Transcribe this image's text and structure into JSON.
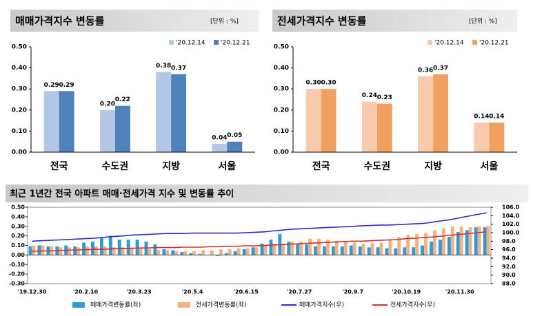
{
  "chart_data": [
    {
      "type": "bar",
      "title": "매매가격지수 변동률",
      "unit": "[단위 : %]",
      "categories": [
        "전국",
        "수도권",
        "지방",
        "서울"
      ],
      "series": [
        {
          "name": "'20.12.14",
          "color": "#b4c7e7",
          "values": [
            0.29,
            0.2,
            0.38,
            0.04
          ],
          "value_labels": [
            "0.29",
            "0.20",
            "0.38",
            "0.04"
          ]
        },
        {
          "name": "'20.12.21",
          "color": "#4f81bd",
          "values": [
            0.29,
            0.22,
            0.37,
            0.05
          ],
          "value_labels": [
            "0.29",
            "0.22",
            "0.37",
            "0.05"
          ]
        }
      ],
      "ylim": [
        0,
        0.5
      ],
      "yticks": [
        {
          "value": 0,
          "label": "0.00"
        },
        {
          "value": 0.1,
          "label": "0.10"
        },
        {
          "value": 0.2,
          "label": "0.20"
        },
        {
          "value": 0.3,
          "label": "0.30"
        },
        {
          "value": 0.4,
          "label": "0.40"
        },
        {
          "value": 0.5,
          "label": "0.50"
        }
      ]
    },
    {
      "type": "bar",
      "title": "전세가격지수 변동률",
      "unit": "[단위 : %]",
      "categories": [
        "전국",
        "수도권",
        "지방",
        "서울"
      ],
      "series": [
        {
          "name": "'20.12.14",
          "color": "#f8cbad",
          "values": [
            0.3,
            0.24,
            0.36,
            0.14
          ],
          "value_labels": [
            "0.30",
            "0.24",
            "0.36",
            "0.14"
          ]
        },
        {
          "name": "'20.12.21",
          "color": "#f0a060",
          "values": [
            0.3,
            0.23,
            0.37,
            0.14
          ],
          "value_labels": [
            "0.30",
            "0.23",
            "0.37",
            "0.14"
          ]
        }
      ],
      "ylim": [
        0,
        0.5
      ],
      "yticks": [
        {
          "value": 0,
          "label": "0.00"
        },
        {
          "value": 0.1,
          "label": "0.10"
        },
        {
          "value": 0.2,
          "label": "0.20"
        },
        {
          "value": 0.3,
          "label": "0.30"
        },
        {
          "value": 0.4,
          "label": "0.40"
        },
        {
          "value": 0.5,
          "label": "0.50"
        }
      ]
    },
    {
      "type": "combo",
      "title": "최근 1년간 전국 아파트 매매·전세가격 지수 및 변동률 추이",
      "categories": [
        "'19.12.30",
        null,
        null,
        null,
        null,
        null,
        "'20.2.10",
        null,
        null,
        null,
        null,
        null,
        "'20.3.23",
        null,
        null,
        null,
        null,
        null,
        "'20.5.4",
        null,
        null,
        null,
        null,
        null,
        "'20.6.15",
        null,
        null,
        null,
        null,
        null,
        "'20.7.27",
        null,
        null,
        null,
        null,
        null,
        "'20.9.7",
        null,
        null,
        null,
        null,
        null,
        "'20.10.19",
        null,
        null,
        null,
        null,
        null,
        "'20.11.30",
        null,
        null,
        null
      ],
      "series": [
        {
          "name": "매매가격변동률(좌)",
          "type": "bar",
          "color": "#2e9bd6",
          "values": [
            0.09,
            0.1,
            0.09,
            0.09,
            0.1,
            0.09,
            0.13,
            0.14,
            0.18,
            0.2,
            0.16,
            0.16,
            0.16,
            0.14,
            0.11,
            0.06,
            0.05,
            0.03,
            0.02,
            0.01,
            0.0,
            -0.01,
            0.02,
            0.04,
            0.06,
            0.08,
            0.12,
            0.16,
            0.22,
            0.14,
            0.12,
            0.11,
            0.09,
            0.09,
            0.09,
            0.09,
            0.1,
            0.09,
            0.08,
            0.08,
            0.07,
            0.07,
            0.08,
            0.08,
            0.1,
            0.14,
            0.16,
            0.19,
            0.24,
            0.26,
            0.29,
            0.29
          ]
        },
        {
          "name": "전세가격변동률(좌)",
          "type": "bar",
          "color": "#f4b183",
          "values": [
            0.1,
            0.1,
            0.09,
            0.08,
            0.08,
            0.08,
            0.09,
            0.09,
            0.09,
            0.08,
            0.08,
            0.08,
            0.07,
            0.06,
            0.05,
            0.05,
            0.04,
            0.04,
            0.04,
            0.05,
            0.05,
            0.06,
            0.06,
            0.07,
            0.07,
            0.08,
            0.1,
            0.12,
            0.12,
            0.14,
            0.14,
            0.17,
            0.17,
            0.16,
            0.15,
            0.14,
            0.13,
            0.12,
            0.12,
            0.13,
            0.16,
            0.19,
            0.21,
            0.22,
            0.23,
            0.26,
            0.28,
            0.3,
            0.3,
            0.29,
            0.3,
            0.3
          ]
        },
        {
          "name": "매매가격지수(우)",
          "type": "line",
          "axis": "y2",
          "color": "#2a2ad0",
          "values": [
            98.0,
            98.1,
            98.2,
            98.3,
            98.4,
            98.5,
            98.6,
            98.7,
            98.9,
            99.1,
            99.2,
            99.4,
            99.5,
            99.6,
            99.7,
            99.8,
            99.8,
            99.8,
            99.9,
            99.9,
            99.9,
            99.9,
            99.9,
            99.9,
            100.0,
            100.1,
            100.2,
            100.4,
            100.6,
            100.8,
            100.9,
            101.0,
            101.1,
            101.2,
            101.3,
            101.4,
            101.5,
            101.6,
            101.7,
            101.8,
            101.8,
            101.9,
            102.0,
            102.1,
            102.2,
            102.5,
            102.8,
            103.1,
            103.5,
            103.9,
            104.3,
            104.7
          ]
        },
        {
          "name": "전세가격지수(우)",
          "type": "line",
          "axis": "y2",
          "color": "#d03030",
          "values": [
            95.6,
            95.7,
            95.7,
            95.8,
            95.9,
            95.9,
            96.0,
            96.1,
            96.1,
            96.2,
            96.3,
            96.3,
            96.4,
            96.4,
            96.5,
            96.5,
            96.5,
            96.6,
            96.6,
            96.6,
            96.7,
            96.7,
            96.8,
            96.8,
            96.9,
            96.9,
            97.0,
            97.1,
            97.2,
            97.3,
            97.4,
            97.5,
            97.6,
            97.7,
            97.8,
            97.9,
            98.0,
            98.0,
            98.1,
            98.2,
            98.3,
            98.4,
            98.6,
            98.7,
            98.9,
            99.0,
            99.2,
            99.4,
            99.6,
            99.8,
            100.0,
            100.2
          ]
        }
      ],
      "ylim": [
        -0.3,
        0.5
      ],
      "yticks": [
        {
          "value": -0.3,
          "label": "-0.30"
        },
        {
          "value": -0.2,
          "label": "-0.20"
        },
        {
          "value": -0.1,
          "label": "-0.10"
        },
        {
          "value": 0,
          "label": "0.00"
        },
        {
          "value": 0.1,
          "label": "0.10"
        },
        {
          "value": 0.2,
          "label": "0.20"
        },
        {
          "value": 0.3,
          "label": "0.30"
        },
        {
          "value": 0.4,
          "label": "0.40"
        },
        {
          "value": 0.5,
          "label": "0.50"
        }
      ],
      "y2lim": [
        88,
        106
      ],
      "y2ticks": [
        {
          "value": 88,
          "label": "88.0"
        },
        {
          "value": 90,
          "label": "90.0"
        },
        {
          "value": 92,
          "label": "92.0"
        },
        {
          "value": 94,
          "label": "94.0"
        },
        {
          "value": 96,
          "label": "96.0"
        },
        {
          "value": 98,
          "label": "98.0"
        },
        {
          "value": 100,
          "label": "100.0"
        },
        {
          "value": 102,
          "label": "102.0"
        },
        {
          "value": 104,
          "label": "104.0"
        },
        {
          "value": 106,
          "label": "106.0"
        }
      ]
    }
  ]
}
